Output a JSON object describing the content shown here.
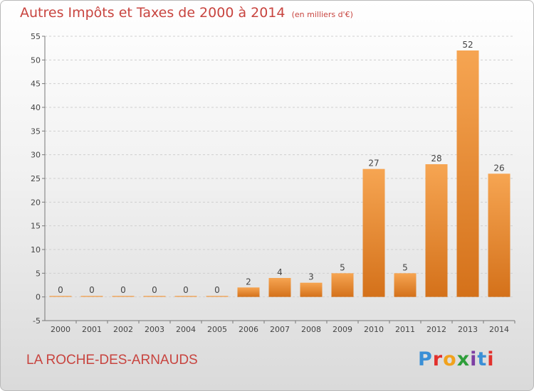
{
  "chart_data": {
    "type": "bar",
    "title": "Autres Impôts et Taxes de 2000 à 2014",
    "subtitle": "(en milliers d'€)",
    "categories": [
      "2000",
      "2001",
      "2002",
      "2003",
      "2004",
      "2005",
      "2006",
      "2007",
      "2008",
      "2009",
      "2010",
      "2011",
      "2012",
      "2013",
      "2014"
    ],
    "values": [
      0,
      0,
      0,
      0,
      0,
      0,
      2,
      4,
      3,
      5,
      27,
      5,
      28,
      52,
      26
    ],
    "ylim": [
      -5,
      55
    ],
    "yticks": [
      "-5",
      "0",
      "5",
      "10",
      "15",
      "20",
      "25",
      "30",
      "35",
      "40",
      "45",
      "50",
      "55"
    ],
    "grid": "horizontal dashed",
    "bar_color": "#f0932f"
  },
  "footer": {
    "commune": "LA ROCHE-DES-ARNAUDS",
    "logo_text": "Proxiti",
    "logo_colors": [
      "#3a8fd6",
      "#e2312d",
      "#f1a21d",
      "#2e9e3a",
      "#7d3ea3",
      "#3a8fd6",
      "#e2312d"
    ]
  }
}
